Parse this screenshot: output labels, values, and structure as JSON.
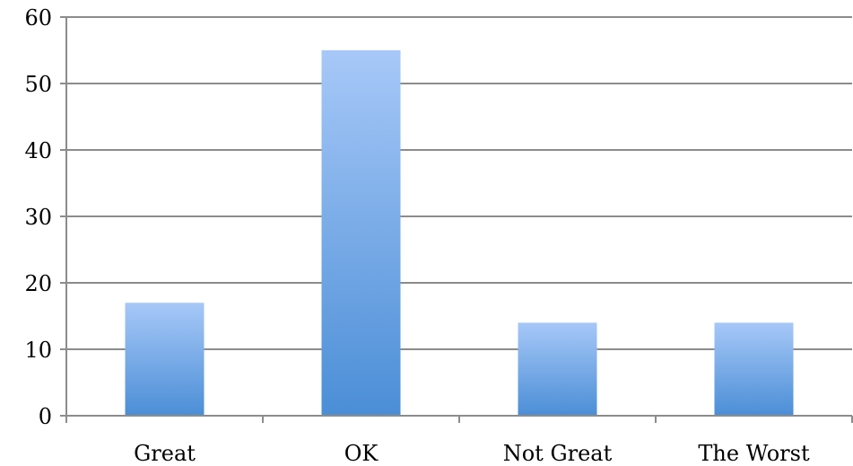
{
  "chart_data": {
    "type": "bar",
    "categories": [
      "Great",
      "OK",
      "Not Great",
      "The Worst"
    ],
    "values": [
      17,
      55,
      14,
      14
    ],
    "ylim": [
      0,
      60
    ],
    "yticks": [
      0,
      10,
      20,
      30,
      40,
      50,
      60
    ],
    "grid": true,
    "legend": "none",
    "colors": {
      "bar_top": "#a7c8f8",
      "bar_bottom": "#4b8ed6",
      "grid": "#8c8c8c"
    }
  }
}
